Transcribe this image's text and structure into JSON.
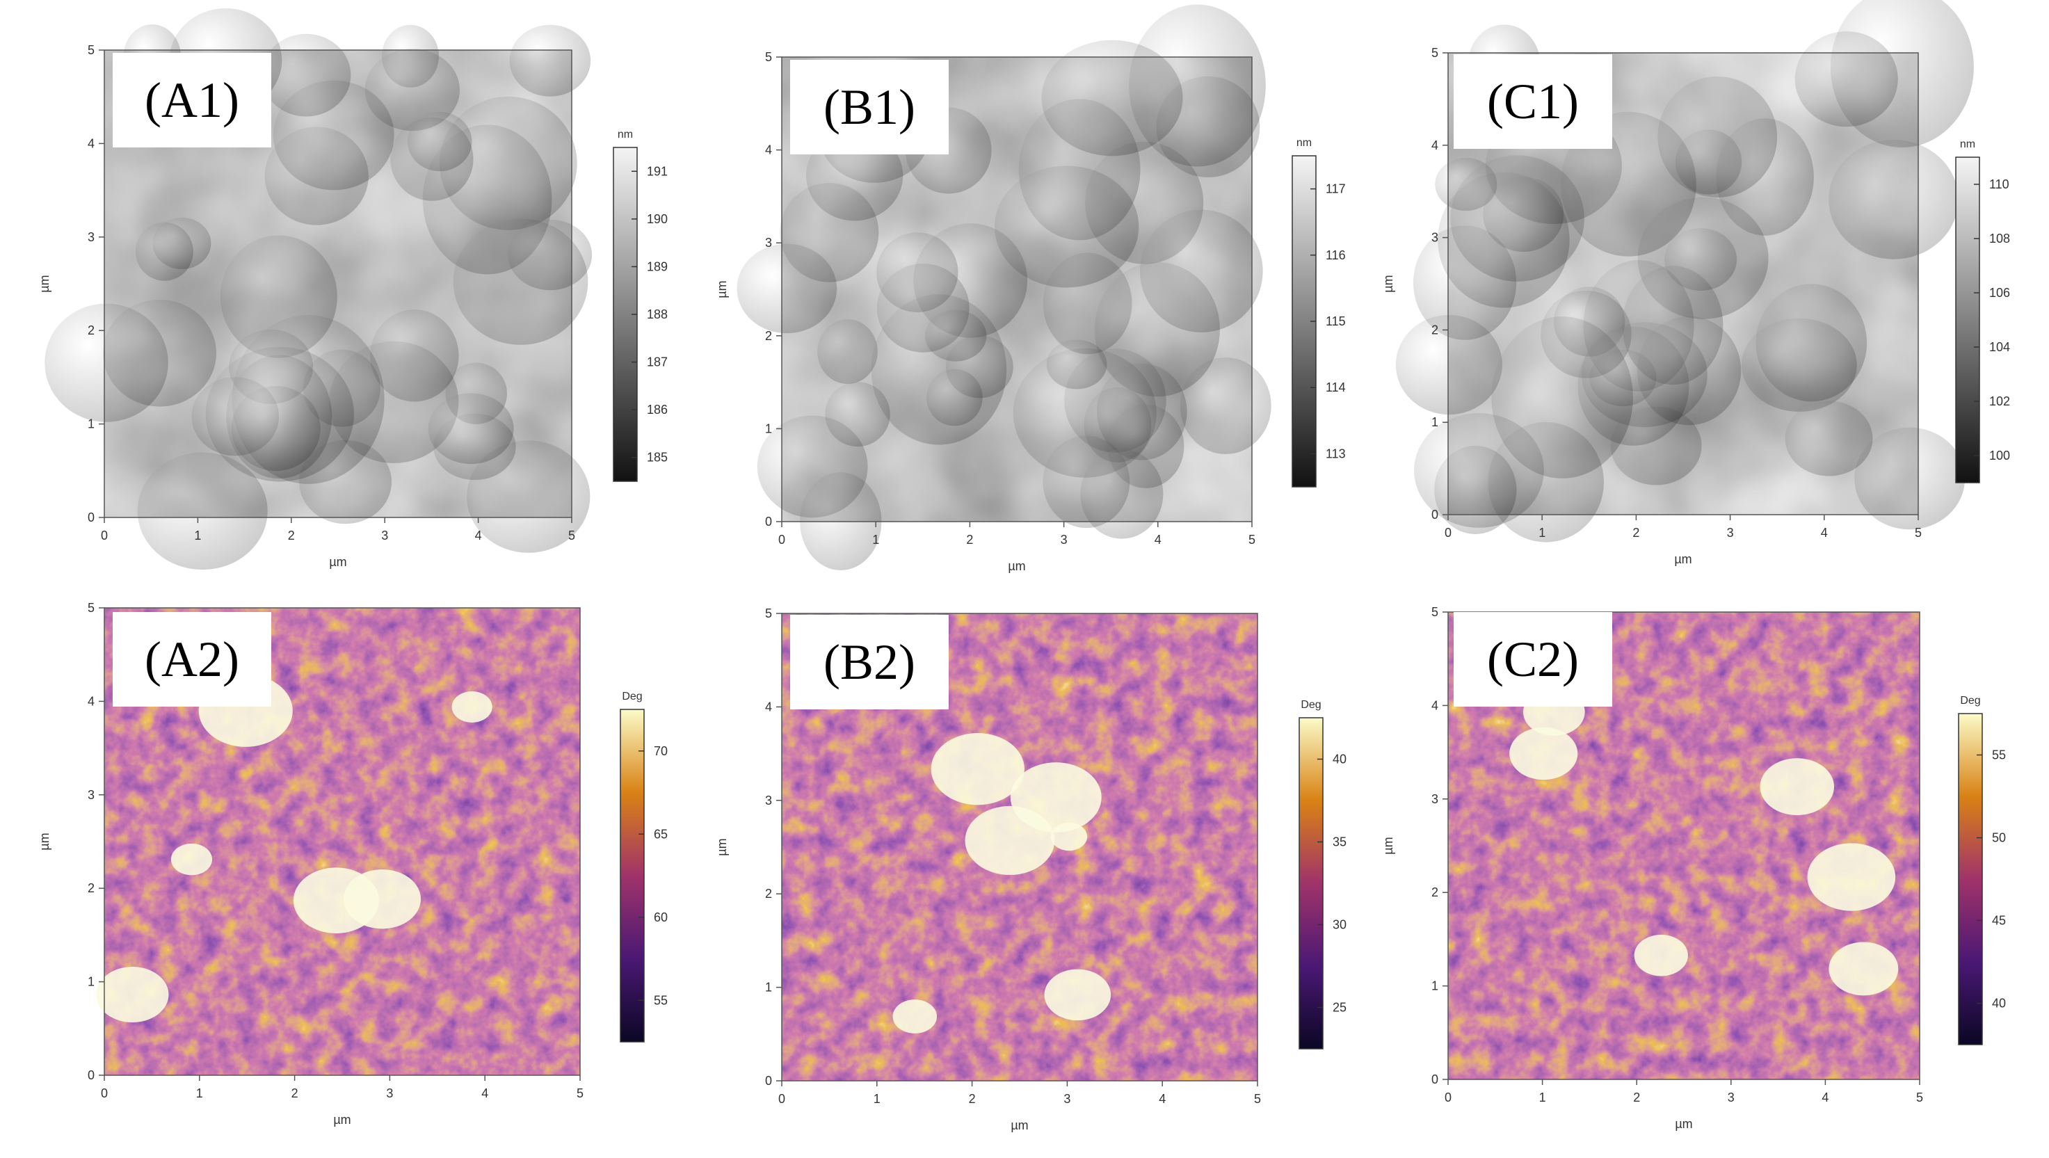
{
  "axis_unit": "µm",
  "axis_ticks": [
    "0",
    "1",
    "2",
    "3",
    "4",
    "5"
  ],
  "colors": {
    "height_low": "#111111",
    "height_high": "#f4f4f4",
    "phase_low": "#0b0724",
    "phase_mid_low": "#4a1874",
    "phase_mid": "#a0336a",
    "phase_mid_high": "#d98214",
    "phase_high": "#fbfbc8"
  },
  "panels": [
    {
      "id": "A1",
      "label": "(A1)",
      "kind": "height",
      "scale_unit": "nm",
      "scale_ticks": [
        "191",
        "190",
        "189",
        "188",
        "187",
        "186",
        "185"
      ]
    },
    {
      "id": "B1",
      "label": "(B1)",
      "kind": "height",
      "scale_unit": "nm",
      "scale_ticks": [
        "117",
        "116",
        "115",
        "114",
        "113"
      ]
    },
    {
      "id": "C1",
      "label": "(C1)",
      "kind": "height",
      "scale_unit": "nm",
      "scale_ticks": [
        "110",
        "108",
        "106",
        "104",
        "102",
        "100"
      ]
    },
    {
      "id": "A2",
      "label": "(A2)",
      "kind": "phase",
      "scale_unit": "Deg",
      "scale_ticks": [
        "70",
        "65",
        "60",
        "55"
      ]
    },
    {
      "id": "B2",
      "label": "(B2)",
      "kind": "phase",
      "scale_unit": "Deg",
      "scale_ticks": [
        "40",
        "35",
        "30",
        "25"
      ]
    },
    {
      "id": "C2",
      "label": "(C2)",
      "kind": "phase",
      "scale_unit": "Deg",
      "scale_ticks": [
        "55",
        "50",
        "45",
        "40"
      ]
    }
  ]
}
